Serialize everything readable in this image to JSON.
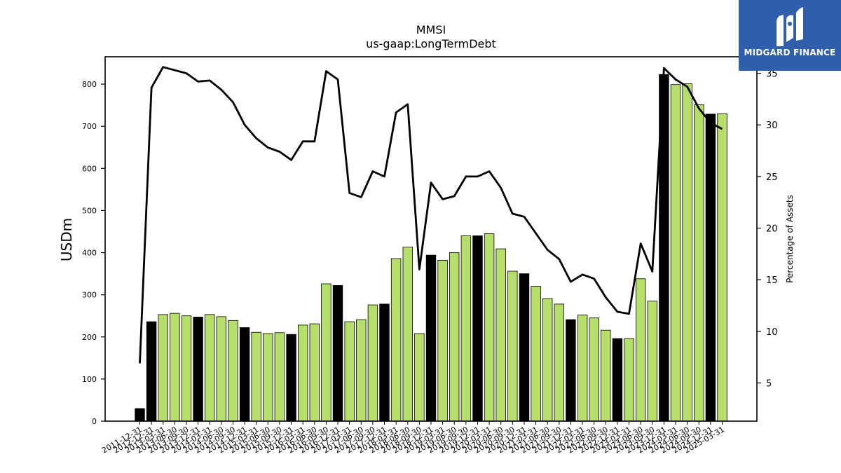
{
  "brand": {
    "name": "MIDGARD FINANCE",
    "logo_icon": "midgard-m-logo-icon",
    "color": "#2e5eac"
  },
  "chart_data": {
    "type": "bar",
    "title": "MMSI",
    "subtitle": "us-gaap:LongTermDebt",
    "ylabel": "USDm",
    "y2label": "Percentage of Assets",
    "ylim": [
      0,
      865
    ],
    "y2lim": [
      1.3,
      36.6
    ],
    "yticks": [
      0,
      100,
      200,
      300,
      400,
      500,
      600,
      700,
      800
    ],
    "y2ticks": [
      5,
      10,
      15,
      20,
      25,
      30,
      35
    ],
    "colors": {
      "annual": "#000000",
      "quarterly": "#b5de6b",
      "line": "#000000"
    },
    "x_tick_labels": [
      "2011-12-31",
      "2012-12-31",
      "2013-03-31",
      "2013-06-30",
      "2013-09-30",
      "2013-12-31",
      "2014-03-31",
      "2014-06-30",
      "2014-09-30",
      "2014-12-31",
      "2015-03-31",
      "2015-06-30",
      "2015-09-30",
      "2015-12-31",
      "2016-03-31",
      "2016-06-30",
      "2016-09-30",
      "2016-12-31",
      "2017-03-31",
      "2017-06-30",
      "2017-09-30",
      "2017-12-31",
      "2018-03-31",
      "2018-06-30",
      "2018-09-30",
      "2018-12-31",
      "2019-03-31",
      "2019-06-30",
      "2019-09-30",
      "2019-12-31",
      "2020-03-31",
      "2020-06-30",
      "2020-09-30",
      "2020-12-31",
      "2021-03-31",
      "2021-06-30",
      "2021-09-30",
      "2021-12-31",
      "2022-03-31",
      "2022-06-30",
      "2022-09-30",
      "2022-12-31",
      "2023-03-31",
      "2023-06-30",
      "2023-09-30",
      "2023-12-31",
      "2024-03-31",
      "2024-06-30",
      "2024-09-30",
      "2024-12-31",
      "2025-03-31"
    ],
    "series": [
      {
        "values": [
          30,
          236,
          253,
          256,
          250,
          247,
          253,
          248,
          239,
          222,
          211,
          208,
          210,
          206,
          228,
          231,
          326,
          322,
          236,
          241,
          276,
          278,
          386,
          413,
          208,
          394,
          382,
          400,
          440,
          440,
          445,
          409,
          356,
          350,
          320,
          291,
          278,
          241,
          252,
          245,
          216,
          196,
          196,
          338,
          285,
          823,
          799,
          801,
          751,
          729,
          730
        ],
        "period_type": [
          "annual",
          "annual",
          "quarterly",
          "quarterly",
          "quarterly",
          "annual",
          "quarterly",
          "quarterly",
          "quarterly",
          "annual",
          "quarterly",
          "quarterly",
          "quarterly",
          "annual",
          "quarterly",
          "quarterly",
          "quarterly",
          "annual",
          "quarterly",
          "quarterly",
          "quarterly",
          "annual",
          "quarterly",
          "quarterly",
          "quarterly",
          "annual",
          "quarterly",
          "quarterly",
          "quarterly",
          "annual",
          "quarterly",
          "quarterly",
          "quarterly",
          "annual",
          "quarterly",
          "quarterly",
          "quarterly",
          "annual",
          "quarterly",
          "quarterly",
          "quarterly",
          "annual",
          "quarterly",
          "quarterly",
          "quarterly",
          "annual",
          "quarterly",
          "quarterly",
          "quarterly",
          "annual",
          "quarterly"
        ]
      },
      {
        "axis": "right",
        "values": [
          6.9,
          33.6,
          35.6,
          35.3,
          35.0,
          34.2,
          34.3,
          33.4,
          32.2,
          30.0,
          28.7,
          27.8,
          27.4,
          26.6,
          28.4,
          28.4,
          35.2,
          34.4,
          23.4,
          23.0,
          25.5,
          25.0,
          31.2,
          32.0,
          16.0,
          24.4,
          22.8,
          23.1,
          25.0,
          25.0,
          25.5,
          23.9,
          21.4,
          21.1,
          19.5,
          17.9,
          17.0,
          14.8,
          15.5,
          15.1,
          13.3,
          11.9,
          11.7,
          18.5,
          15.8,
          35.5,
          34.4,
          33.7,
          31.6,
          30.2,
          29.6
        ]
      }
    ]
  }
}
